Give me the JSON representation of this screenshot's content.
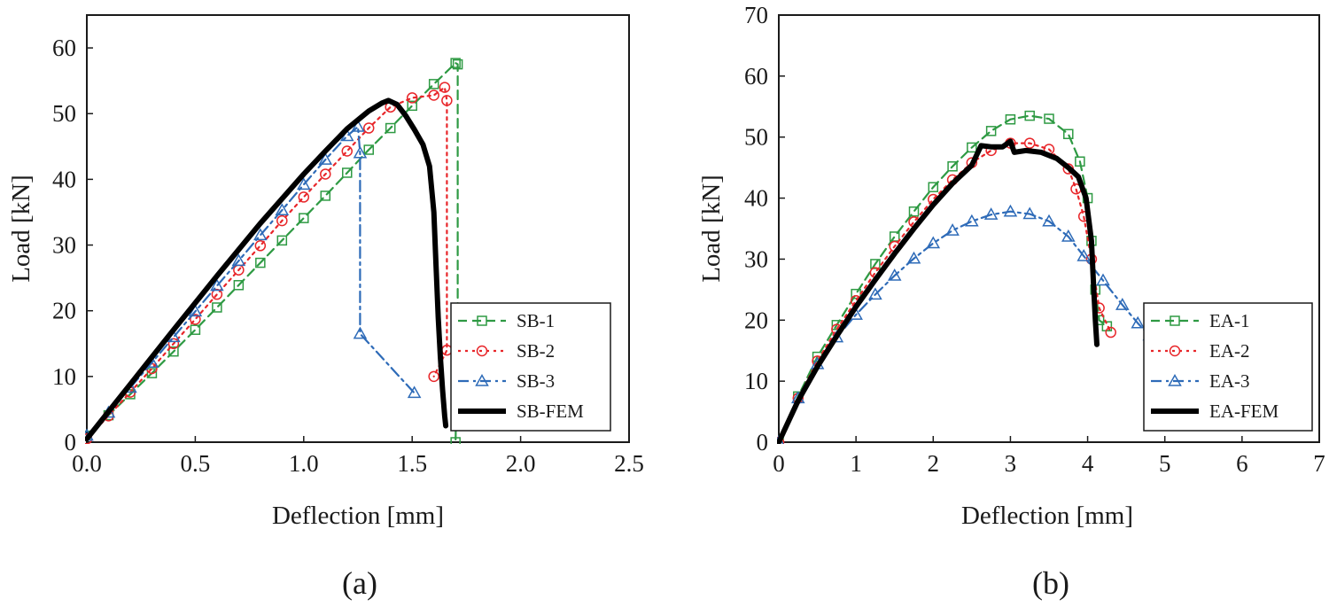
{
  "colors": {
    "green": "#2e9a43",
    "red": "#e8262a",
    "blue": "#2e6bb8",
    "black": "#000000"
  },
  "chart_data": [
    {
      "type": "line",
      "panel_label": "(a)",
      "xlabel": "Deflection [mm]",
      "ylabel": "Load [kN]",
      "xlim": [
        0,
        2.5
      ],
      "ylim": [
        0,
        65
      ],
      "xticks": [
        0.0,
        0.5,
        1.0,
        1.5,
        2.0,
        2.5
      ],
      "xtick_labels": [
        "0.0",
        "0.5",
        "1.0",
        "1.5",
        "2.0",
        "2.5"
      ],
      "yticks": [
        0,
        10,
        20,
        30,
        40,
        50,
        60
      ],
      "ytick_labels": [
        "0",
        "10",
        "20",
        "30",
        "40",
        "50",
        "60"
      ],
      "legend_position": "bottom-right",
      "series": [
        {
          "name": "SB-1",
          "color": "green",
          "dash": "dash",
          "marker": "square",
          "x": [
            0,
            0.1,
            0.2,
            0.3,
            0.4,
            0.5,
            0.6,
            0.7,
            0.8,
            0.9,
            1.0,
            1.1,
            1.2,
            1.3,
            1.4,
            1.5,
            1.6,
            1.7,
            1.71,
            1.71,
            1.7
          ],
          "y": [
            1,
            4.1,
            7.3,
            10.5,
            13.8,
            17.1,
            20.5,
            23.9,
            27.3,
            30.7,
            34.1,
            37.5,
            41,
            44.5,
            47.8,
            51.2,
            54.5,
            57.7,
            57.5,
            20,
            0
          ]
        },
        {
          "name": "SB-2",
          "color": "red",
          "dash": "dot",
          "marker": "circle",
          "x": [
            0,
            0.1,
            0.2,
            0.3,
            0.4,
            0.5,
            0.6,
            0.7,
            0.8,
            0.9,
            1.0,
            1.1,
            1.2,
            1.3,
            1.4,
            1.5,
            1.6,
            1.65,
            1.66,
            1.66,
            1.6
          ],
          "y": [
            0.5,
            4,
            7.6,
            11.2,
            15,
            18.7,
            22.5,
            26.2,
            29.9,
            33.7,
            37.3,
            40.8,
            44.3,
            47.8,
            51,
            52.4,
            52.8,
            54,
            52,
            14,
            10
          ]
        },
        {
          "name": "SB-3",
          "color": "blue",
          "dash": "dashdot",
          "marker": "triangle",
          "x": [
            0,
            0.1,
            0.2,
            0.3,
            0.4,
            0.5,
            0.6,
            0.7,
            0.8,
            0.9,
            1.0,
            1.1,
            1.2,
            1.25,
            1.26,
            1.26,
            1.51
          ],
          "y": [
            1,
            4.5,
            8.3,
            12.1,
            16,
            19.9,
            23.8,
            27.6,
            31.5,
            35.3,
            39.2,
            43,
            46.6,
            48,
            44,
            16.5,
            7.5
          ]
        },
        {
          "name": "SB-FEM",
          "color": "black",
          "dash": "solid",
          "marker": "none",
          "x": [
            0,
            0.2,
            0.4,
            0.6,
            0.8,
            1.0,
            1.1,
            1.2,
            1.3,
            1.36,
            1.39,
            1.43,
            1.47,
            1.51,
            1.55,
            1.58,
            1.6,
            1.61,
            1.62,
            1.63,
            1.64,
            1.65,
            1.655
          ],
          "y": [
            0.5,
            8.8,
            17.1,
            25.3,
            33.3,
            40.8,
            44.3,
            47.7,
            50.4,
            51.6,
            52,
            51.4,
            49.7,
            47.6,
            45.3,
            42,
            35,
            27,
            19,
            13,
            8,
            4,
            2.5
          ]
        }
      ]
    },
    {
      "type": "line",
      "panel_label": "(b)",
      "xlabel": "Deflection [mm]",
      "ylabel": "Load [kN]",
      "xlim": [
        0,
        7
      ],
      "ylim": [
        0,
        70
      ],
      "xticks": [
        0,
        1,
        2,
        3,
        4,
        5,
        6,
        7
      ],
      "xtick_labels": [
        "0",
        "1",
        "2",
        "3",
        "4",
        "5",
        "6",
        "7"
      ],
      "yticks": [
        0,
        10,
        20,
        30,
        40,
        50,
        60,
        70
      ],
      "ytick_labels": [
        "0",
        "10",
        "20",
        "30",
        "40",
        "50",
        "60",
        "70"
      ],
      "legend_position": "bottom-right",
      "series": [
        {
          "name": "EA-1",
          "color": "green",
          "dash": "dash",
          "marker": "square",
          "x": [
            0,
            0.25,
            0.5,
            0.75,
            1.0,
            1.25,
            1.5,
            1.75,
            2.0,
            2.25,
            2.5,
            2.75,
            3.0,
            3.25,
            3.5,
            3.75,
            3.9,
            4.0,
            4.05,
            4.1,
            4.15,
            4.25
          ],
          "y": [
            0,
            7.5,
            14,
            19.2,
            24.3,
            29.2,
            33.7,
            37.8,
            41.8,
            45.2,
            48.3,
            51,
            52.9,
            53.5,
            53,
            50.5,
            46,
            40,
            33,
            25,
            20,
            19
          ]
        },
        {
          "name": "EA-2",
          "color": "red",
          "dash": "dot",
          "marker": "circle",
          "x": [
            0,
            0.25,
            0.5,
            0.75,
            1.0,
            1.25,
            1.5,
            1.75,
            2.0,
            2.25,
            2.5,
            2.75,
            3.0,
            3.25,
            3.5,
            3.75,
            3.85,
            3.95,
            4.05,
            4.15,
            4.3
          ],
          "y": [
            0,
            7.2,
            13.3,
            18.5,
            23.2,
            27.8,
            32.1,
            36.1,
            39.8,
            43,
            45.8,
            47.8,
            49,
            49,
            48,
            44.8,
            41.5,
            37,
            30,
            22,
            18
          ]
        },
        {
          "name": "EA-3",
          "color": "blue",
          "dash": "dashdot",
          "marker": "triangle",
          "x": [
            0,
            0.25,
            0.5,
            0.75,
            1.0,
            1.25,
            1.5,
            1.75,
            2.0,
            2.25,
            2.5,
            2.75,
            3.0,
            3.25,
            3.5,
            3.75,
            3.95,
            4.2,
            4.45,
            4.65,
            4.8
          ],
          "y": [
            0,
            7.2,
            12.8,
            17.2,
            20.9,
            24.2,
            27.3,
            30.1,
            32.6,
            34.7,
            36.2,
            37.3,
            37.8,
            37.4,
            36.2,
            33.7,
            30.5,
            26.5,
            22.5,
            19.5,
            17.5
          ]
        },
        {
          "name": "EA-FEM",
          "color": "black",
          "dash": "solid",
          "marker": "none",
          "x": [
            0,
            0.25,
            0.5,
            0.75,
            1.0,
            1.25,
            1.5,
            1.75,
            2.0,
            2.25,
            2.5,
            2.62,
            2.75,
            2.9,
            3.0,
            3.05,
            3.2,
            3.4,
            3.6,
            3.75,
            3.88,
            3.98,
            4.05,
            4.08,
            4.1,
            4.12
          ],
          "y": [
            0,
            6.8,
            12.4,
            17.4,
            22.2,
            26.6,
            30.9,
            35,
            38.9,
            42.4,
            45.4,
            48.6,
            48.4,
            48.4,
            49.3,
            47.5,
            47.8,
            47.5,
            46.5,
            45,
            43.5,
            40,
            33,
            25,
            20,
            16
          ]
        }
      ]
    }
  ]
}
